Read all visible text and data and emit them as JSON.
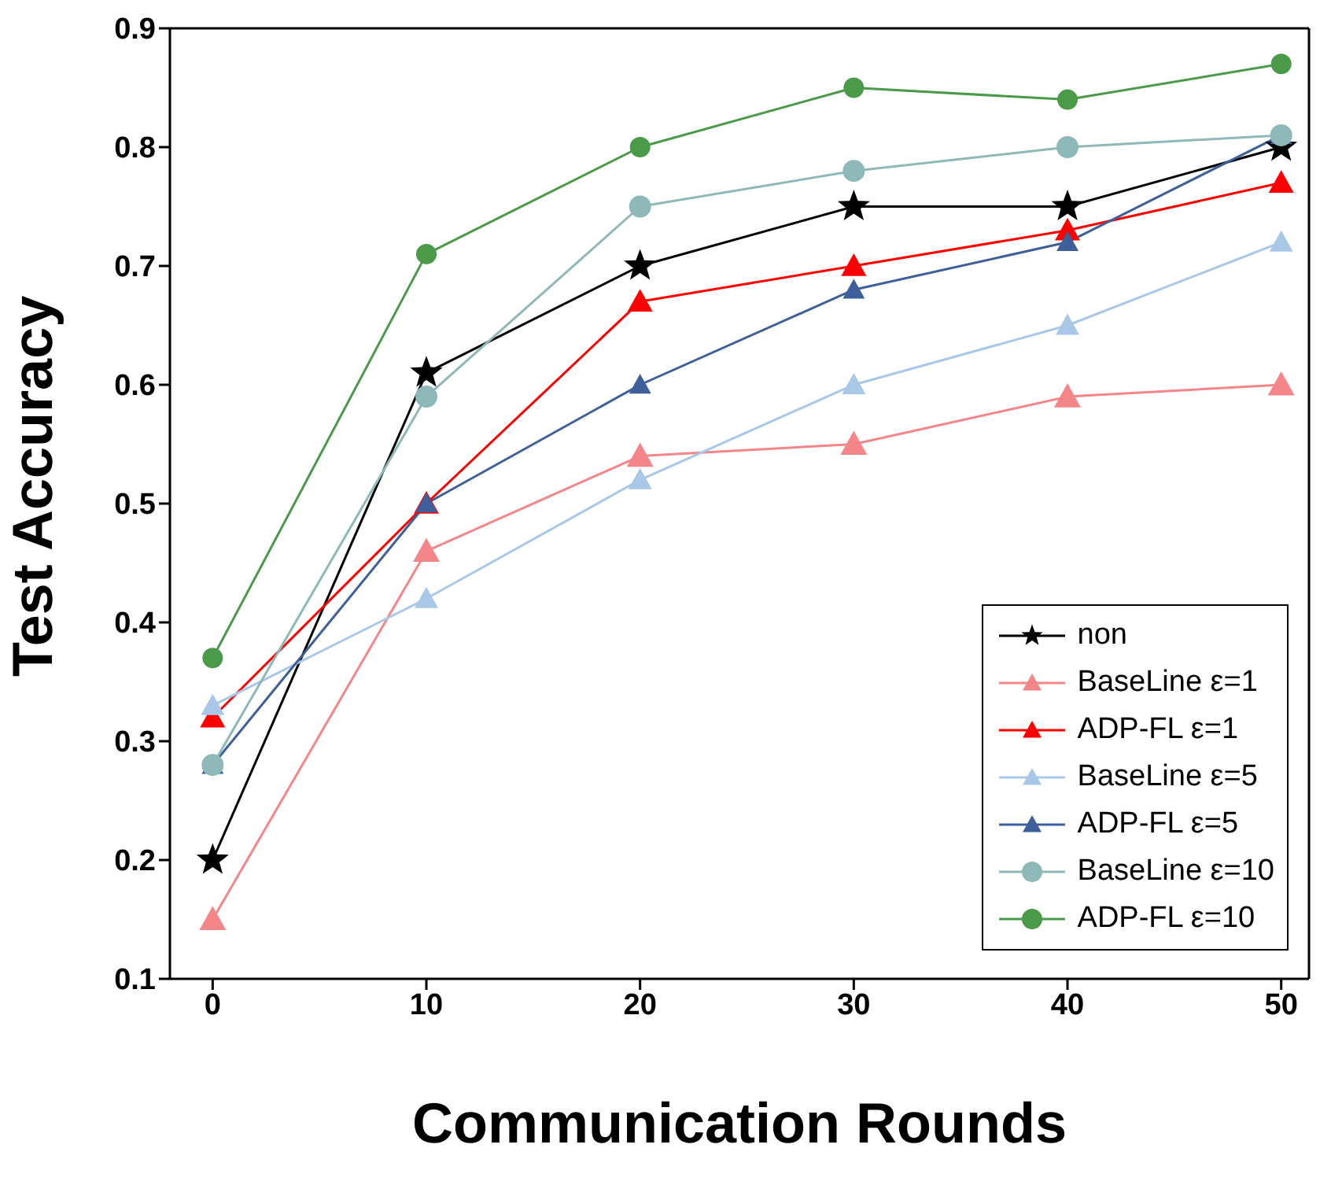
{
  "chart_data": {
    "type": "line",
    "xlabel": "Communication Rounds",
    "ylabel": "Test Accuracy",
    "x": [
      0,
      10,
      20,
      30,
      40,
      50
    ],
    "xlim": [
      -2,
      51.3
    ],
    "xticks": [
      0,
      10,
      20,
      30,
      40,
      50
    ],
    "ylim": [
      0.1,
      0.9
    ],
    "yticks": [
      0.1,
      0.2,
      0.3,
      0.4,
      0.5,
      0.6,
      0.7,
      0.8,
      0.9
    ],
    "grid": false,
    "legend": "bottom right",
    "series": [
      {
        "name": "non",
        "color": "#000000",
        "marker": "star",
        "values": [
          0.2,
          0.61,
          0.7,
          0.75,
          0.75,
          0.8
        ]
      },
      {
        "name": "BaseLine ε=1",
        "color": "#f4868a",
        "marker": "triangle",
        "values": [
          0.15,
          0.46,
          0.54,
          0.55,
          0.59,
          0.6
        ]
      },
      {
        "name": "ADP-FL ε=1",
        "color": "#ff0000",
        "marker": "triangle",
        "values": [
          0.32,
          0.5,
          0.67,
          0.7,
          0.73,
          0.77
        ]
      },
      {
        "name": "BaseLine ε=5",
        "color": "#a9c8e8",
        "marker": "triangle",
        "values": [
          0.33,
          0.42,
          0.52,
          0.6,
          0.65,
          0.72
        ]
      },
      {
        "name": "ADP-FL ε=5",
        "color": "#3f5f9a",
        "marker": "triangle",
        "values": [
          0.28,
          0.5,
          0.6,
          0.68,
          0.72,
          0.81
        ]
      },
      {
        "name": "BaseLine ε=10",
        "color": "#8fb8b8",
        "marker": "circle",
        "values": [
          0.28,
          0.59,
          0.75,
          0.78,
          0.8,
          0.81
        ]
      },
      {
        "name": "ADP-FL ε=10",
        "color": "#4a9a4a",
        "marker": "circle",
        "values": [
          0.37,
          0.71,
          0.8,
          0.85,
          0.84,
          0.87
        ]
      }
    ]
  }
}
